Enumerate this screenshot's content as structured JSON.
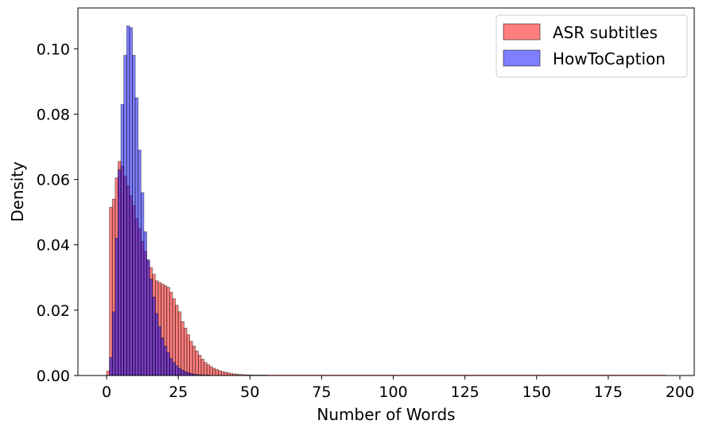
{
  "chart_data": {
    "type": "bar",
    "xlabel": "Number of Words",
    "ylabel": "Density",
    "xlim": [
      -10,
      205
    ],
    "ylim": [
      0,
      0.1125
    ],
    "x_ticks": [
      0,
      25,
      50,
      75,
      100,
      125,
      150,
      175,
      200
    ],
    "y_ticks": [
      0.0,
      0.02,
      0.04,
      0.06,
      0.08,
      0.1
    ],
    "x_tick_labels": [
      "0",
      "25",
      "50",
      "75",
      "100",
      "125",
      "150",
      "175",
      "200"
    ],
    "y_tick_labels": [
      "0.00",
      "0.02",
      "0.04",
      "0.06",
      "0.08",
      "0.10"
    ],
    "bin_width": 1,
    "legend_position": "upper-right",
    "grid": false,
    "series": [
      {
        "name": "ASR subtitles",
        "color": "#ff0000",
        "bin_start": 0,
        "values": [
          0.0014,
          0.0515,
          0.054,
          0.0605,
          0.0655,
          0.064,
          0.061,
          0.058,
          0.055,
          0.052,
          0.048,
          0.045,
          0.041,
          0.038,
          0.035,
          0.033,
          0.031,
          0.029,
          0.0285,
          0.028,
          0.0275,
          0.027,
          0.0255,
          0.0235,
          0.0215,
          0.0195,
          0.0165,
          0.0145,
          0.0125,
          0.0105,
          0.009,
          0.0075,
          0.0062,
          0.005,
          0.004,
          0.0033,
          0.0027,
          0.0022,
          0.0018,
          0.0015,
          0.0012,
          0.001,
          0.0008,
          0.0006,
          0.0005,
          0.0004,
          0.0003,
          0.0003,
          0.0002,
          0.0002,
          0.0001,
          0.0001,
          0.0001,
          0.0001,
          0.0001,
          0.0001
        ]
      },
      {
        "name": "HowToCaption",
        "color": "#0000ff",
        "bin_start": 1,
        "values": [
          0.0055,
          0.0195,
          0.042,
          0.063,
          0.083,
          0.098,
          0.107,
          0.1065,
          0.098,
          0.085,
          0.069,
          0.056,
          0.044,
          0.0355,
          0.0295,
          0.024,
          0.019,
          0.015,
          0.0115,
          0.009,
          0.007,
          0.0052,
          0.004,
          0.003,
          0.0022,
          0.0016,
          0.0012,
          0.0009,
          0.0006,
          0.0004,
          0.0003,
          0.0002,
          0.0002,
          0.0001,
          0.0001
        ]
      }
    ]
  }
}
